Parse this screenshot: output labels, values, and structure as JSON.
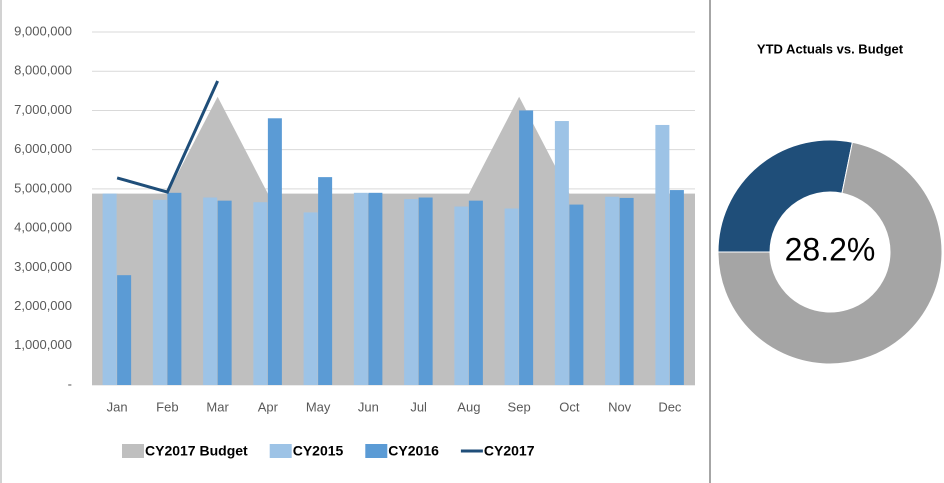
{
  "chart_data": [
    {
      "type": "combo",
      "categories": [
        "Jan",
        "Feb",
        "Mar",
        "Apr",
        "May",
        "Jun",
        "Jul",
        "Aug",
        "Sep",
        "Oct",
        "Nov",
        "Dec"
      ],
      "series": [
        {
          "name": "CY2017 Budget",
          "kind": "area",
          "color": "#bfbfbf",
          "values": [
            4880000,
            4880000,
            7350000,
            4880000,
            4880000,
            4880000,
            4880000,
            4880000,
            7350000,
            4880000,
            4880000,
            4880000
          ]
        },
        {
          "name": "CY2015",
          "kind": "bar",
          "color": "#9dc3e6",
          "values": [
            4880000,
            4720000,
            4780000,
            4660000,
            4400000,
            4900000,
            4740000,
            4550000,
            4500000,
            6730000,
            4800000,
            6630000
          ]
        },
        {
          "name": "CY2016",
          "kind": "bar",
          "color": "#5b9bd5",
          "values": [
            2800000,
            4900000,
            4700000,
            6800000,
            5300000,
            4900000,
            4780000,
            4700000,
            7000000,
            4600000,
            4770000,
            4970000
          ]
        },
        {
          "name": "CY2017",
          "kind": "line",
          "color": "#1f4e79",
          "values": [
            5280000,
            4920000,
            7750000,
            null,
            null,
            null,
            null,
            null,
            null,
            null,
            null,
            null
          ]
        }
      ],
      "ylim": [
        0,
        9000000
      ],
      "yticks": [
        {
          "value": 0,
          "label": "-"
        },
        {
          "value": 1000000,
          "label": "1,000,000"
        },
        {
          "value": 2000000,
          "label": "2,000,000"
        },
        {
          "value": 3000000,
          "label": "3,000,000"
        },
        {
          "value": 4000000,
          "label": "4,000,000"
        },
        {
          "value": 5000000,
          "label": "5,000,000"
        },
        {
          "value": 6000000,
          "label": "6,000,000"
        },
        {
          "value": 7000000,
          "label": "7,000,000"
        },
        {
          "value": 8000000,
          "label": "8,000,000"
        },
        {
          "value": 9000000,
          "label": "9,000,000"
        }
      ],
      "grid": true,
      "legend": "bottom"
    },
    {
      "type": "doughnut",
      "title": "YTD Actuals vs. Budget",
      "values": [
        28.2,
        71.8
      ],
      "value_labels": [
        "28.2%",
        null
      ],
      "colors": [
        "#1f4e79",
        "#a5a5a5"
      ]
    }
  ]
}
